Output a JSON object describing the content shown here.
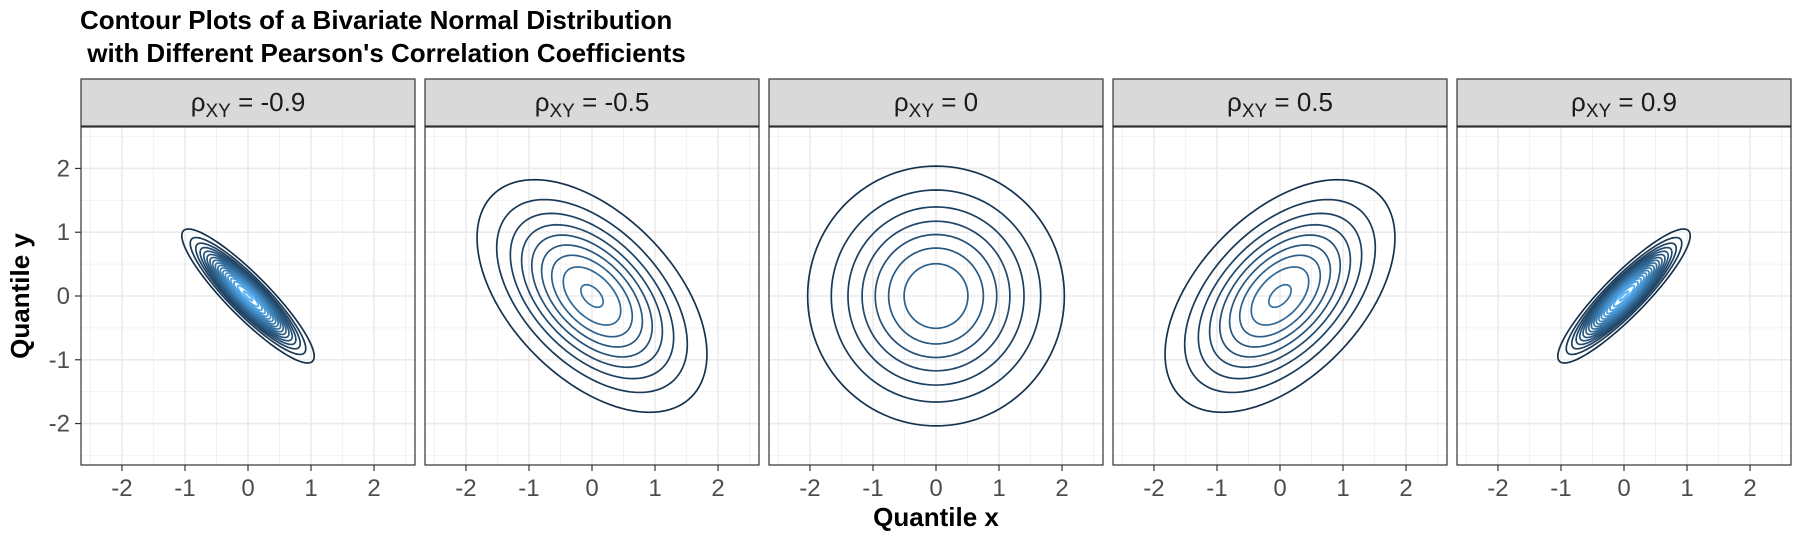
{
  "title_line1": "Contour Plots of a Bivariate Normal Distribution",
  "title_line2": " with Different Pearson's Correlation Coefficients",
  "chart_data": {
    "type": "contour",
    "title": "Contour Plots of a Bivariate Normal Distribution\n with Different Pearson's Correlation Coefficients",
    "xlabel": "Quantile x",
    "ylabel": "Quantile y",
    "xlim": [
      -2.65,
      2.65
    ],
    "ylim": [
      -2.65,
      2.65
    ],
    "x_ticks": [
      -2,
      -1,
      0,
      1,
      2
    ],
    "y_ticks": [
      -2,
      -1,
      0,
      1,
      2
    ],
    "x_tick_labels": [
      "-2",
      "-1",
      "0",
      "1",
      "2"
    ],
    "y_tick_labels": [
      "-2",
      "-1",
      "0",
      "1",
      "2"
    ],
    "grid": true,
    "strip_symbol": "ρ",
    "strip_subscript": "XY",
    "contour_levels": [
      0.02,
      0.04,
      0.06,
      0.08,
      0.1,
      0.12,
      0.14,
      0.16,
      0.18,
      0.2,
      0.22,
      0.24,
      0.26,
      0.28,
      0.3,
      0.32,
      0.34,
      0.36
    ],
    "color_low": "#132B43",
    "color_high": "#56B1F7",
    "panels": [
      {
        "rho": -0.9,
        "label": "-0.9"
      },
      {
        "rho": -0.5,
        "label": "-0.5"
      },
      {
        "rho": 0,
        "label": "0"
      },
      {
        "rho": 0.5,
        "label": "0.5"
      },
      {
        "rho": 0.9,
        "label": "0.9"
      }
    ]
  }
}
